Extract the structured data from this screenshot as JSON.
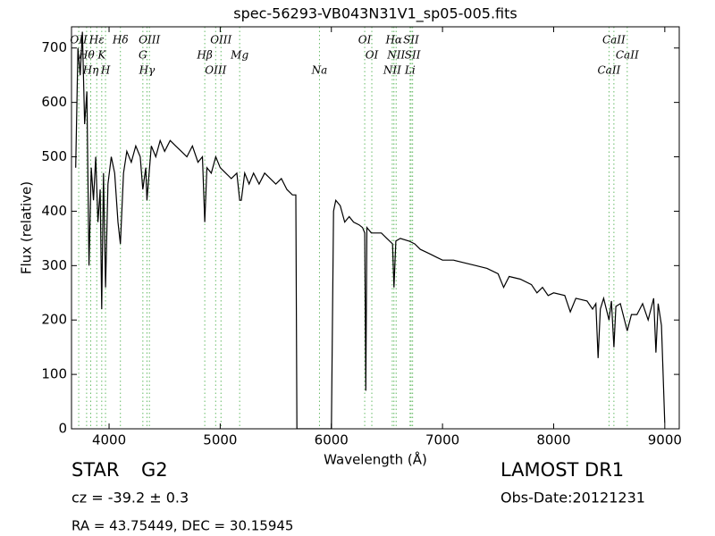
{
  "chart_data": {
    "type": "line",
    "title": "spec-56293-VB043N31V1_sp05-005.fits",
    "xlabel": "Wavelength (Å)",
    "ylabel": "Flux (relative)",
    "xlim": [
      3662,
      9130
    ],
    "ylim": [
      0,
      739
    ],
    "xticks": [
      4000,
      5000,
      6000,
      7000,
      8000,
      9000
    ],
    "yticks": [
      0,
      100,
      200,
      300,
      400,
      500,
      600,
      700
    ],
    "color": "#000000",
    "line_marker_color": "#66bb66",
    "x": [
      3700,
      3720,
      3740,
      3760,
      3780,
      3800,
      3820,
      3840,
      3860,
      3880,
      3900,
      3920,
      3934,
      3950,
      3968,
      3990,
      4020,
      4050,
      4080,
      4102,
      4130,
      4160,
      4200,
      4240,
      4280,
      4304,
      4330,
      4341,
      4380,
      4420,
      4460,
      4500,
      4550,
      4600,
      4650,
      4700,
      4750,
      4800,
      4840,
      4861,
      4880,
      4920,
      4960,
      5000,
      5050,
      5100,
      5150,
      5175,
      5190,
      5220,
      5260,
      5300,
      5350,
      5400,
      5450,
      5500,
      5550,
      5600,
      5650,
      5680,
      5690,
      6000,
      6020,
      6040,
      6080,
      6120,
      6160,
      6200,
      6250,
      6280,
      6300,
      6310,
      6320,
      6360,
      6400,
      6450,
      6500,
      6550,
      6563,
      6580,
      6620,
      6700,
      6750,
      6800,
      6850,
      6900,
      6950,
      7000,
      7100,
      7200,
      7300,
      7400,
      7500,
      7550,
      7600,
      7700,
      7800,
      7850,
      7900,
      7950,
      8000,
      8100,
      8150,
      8200,
      8300,
      8350,
      8380,
      8400,
      8420,
      8450,
      8498,
      8520,
      8542,
      8560,
      8600,
      8662,
      8700,
      8750,
      8800,
      8850,
      8900,
      8920,
      8940,
      8970,
      9000
    ],
    "values": [
      480,
      700,
      650,
      730,
      560,
      620,
      300,
      480,
      420,
      500,
      380,
      440,
      220,
      470,
      260,
      450,
      500,
      470,
      380,
      340,
      470,
      510,
      490,
      520,
      500,
      440,
      480,
      420,
      520,
      500,
      530,
      510,
      530,
      520,
      510,
      500,
      520,
      490,
      500,
      380,
      480,
      470,
      500,
      480,
      470,
      460,
      470,
      420,
      420,
      470,
      450,
      470,
      450,
      470,
      460,
      450,
      460,
      440,
      430,
      430,
      0,
      0,
      400,
      420,
      410,
      380,
      390,
      380,
      375,
      370,
      360,
      70,
      370,
      360,
      360,
      360,
      350,
      340,
      260,
      345,
      350,
      345,
      340,
      330,
      325,
      320,
      315,
      310,
      310,
      305,
      300,
      295,
      285,
      260,
      280,
      275,
      265,
      250,
      260,
      245,
      250,
      245,
      215,
      240,
      235,
      220,
      230,
      130,
      220,
      240,
      200,
      235,
      150,
      225,
      230,
      180,
      210,
      210,
      230,
      200,
      240,
      140,
      230,
      190,
      10
    ],
    "lines": [
      {
        "label": "OII",
        "wavelength": 3727
      },
      {
        "label": "Hθ",
        "wavelength": 3798
      },
      {
        "label": "Hη",
        "wavelength": 3835
      },
      {
        "label": "Hε",
        "wavelength": 3889
      },
      {
        "label": "K",
        "wavelength": 3934
      },
      {
        "label": "H",
        "wavelength": 3968
      },
      {
        "label": "Hδ",
        "wavelength": 4102
      },
      {
        "label": "G",
        "wavelength": 4304
      },
      {
        "label": "Hγ",
        "wavelength": 4341
      },
      {
        "label": "OIII",
        "wavelength": 4363
      },
      {
        "label": "Hβ",
        "wavelength": 4861
      },
      {
        "label": "OIII",
        "wavelength": 4959
      },
      {
        "label": "OIII",
        "wavelength": 5007
      },
      {
        "label": "Mg",
        "wavelength": 5175
      },
      {
        "label": "Na",
        "wavelength": 5893
      },
      {
        "label": "OI",
        "wavelength": 6300
      },
      {
        "label": "OI",
        "wavelength": 6364
      },
      {
        "label": "NII",
        "wavelength": 6548
      },
      {
        "label": "Hα",
        "wavelength": 6563
      },
      {
        "label": "NII",
        "wavelength": 6583
      },
      {
        "label": "Li",
        "wavelength": 6708
      },
      {
        "label": "SII",
        "wavelength": 6717
      },
      {
        "label": "SII",
        "wavelength": 6731
      },
      {
        "label": "CaII",
        "wavelength": 8498
      },
      {
        "label": "CaII",
        "wavelength": 8542
      },
      {
        "label": "CaII",
        "wavelength": 8662
      }
    ]
  },
  "info": {
    "class": "STAR",
    "subclass": "G2",
    "redshift": "cz = -39.2 ± 0.3",
    "coords": "RA = 43.75449, DEC = 30.15945",
    "survey": "LAMOST DR1",
    "obs_date": "Obs-Date:20121231"
  }
}
